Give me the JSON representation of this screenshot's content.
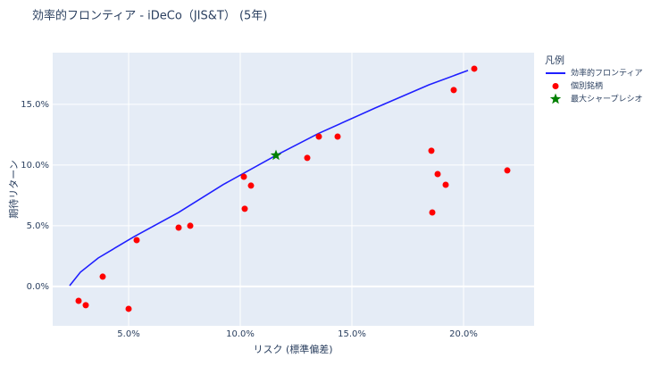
{
  "chart_data": {
    "type": "scatter",
    "title": "効率的フロンティア - iDeCo（JIS&T） (5年)",
    "x_label": "リスク (標準偏差)",
    "y_label": "期待リターン",
    "legend_title": "凡例",
    "legend": "outside-right",
    "grid": true,
    "xlim": [
      1.6,
      23.16
    ],
    "ylim": [
      -3.24,
      19.26
    ],
    "xticks": [
      {
        "value": 5,
        "label": "5.0%"
      },
      {
        "value": 10,
        "label": "10.0%"
      },
      {
        "value": 15,
        "label": "15.0%"
      },
      {
        "value": 20,
        "label": "20.0%"
      }
    ],
    "yticks": [
      {
        "value": 0,
        "label": "0.0%"
      },
      {
        "value": 5,
        "label": "5.0%"
      },
      {
        "value": 10,
        "label": "10.0%"
      },
      {
        "value": 15,
        "label": "15.0%"
      }
    ],
    "series": [
      {
        "name": "効率的フロンティア",
        "mode": "lines",
        "color": "#1f1fff",
        "x": [
          2.36,
          2.84,
          3.64,
          5.24,
          7.24,
          9.24,
          11.6,
          13.5,
          16.04,
          18.44,
          20.2
        ],
        "values": [
          0.07,
          1.18,
          2.35,
          4.1,
          6.1,
          8.4,
          10.8,
          12.6,
          14.7,
          16.6,
          17.8
        ]
      },
      {
        "name": "個別銘柄",
        "mode": "markers",
        "color": "#ff0000",
        "x": [
          2.76,
          3.08,
          3.84,
          5.0,
          5.36,
          7.24,
          7.76,
          10.16,
          10.2,
          10.48,
          13.0,
          13.52,
          14.36,
          18.56,
          18.6,
          18.84,
          19.2,
          19.56,
          20.48,
          21.96
        ],
        "values": [
          -1.18,
          -1.54,
          0.81,
          -1.84,
          3.82,
          4.85,
          5.0,
          9.04,
          6.4,
          8.31,
          10.59,
          12.35,
          12.35,
          11.18,
          6.1,
          9.26,
          8.38,
          16.18,
          17.94,
          9.56
        ]
      },
      {
        "name": "最大シャープレシオ",
        "mode": "star",
        "color": "#008000",
        "x": [
          11.6
        ],
        "values": [
          10.8
        ]
      }
    ]
  }
}
